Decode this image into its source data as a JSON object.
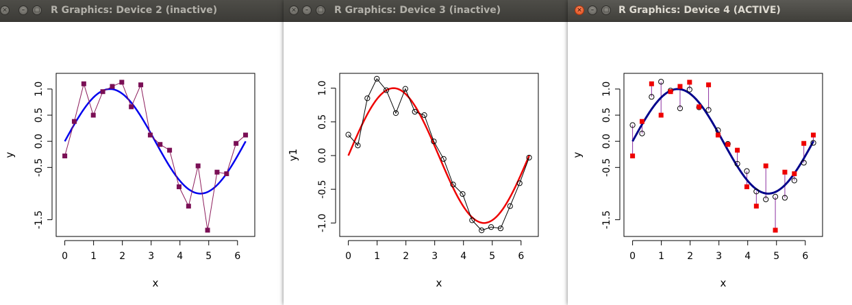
{
  "windows": [
    {
      "title": "R Graphics: Device 2 (inactive)",
      "plot": {
        "type": "scatter",
        "xlabel": "x",
        "ylabel": "y",
        "xlim": [
          -0.3,
          6.6
        ],
        "ylim": [
          -1.82,
          1.3
        ],
        "xticks": [
          0,
          1,
          2,
          3,
          4,
          5,
          6
        ],
        "xticklabels": [
          "0",
          "1",
          "2",
          "3",
          "4",
          "5",
          "6"
        ],
        "yticks": [
          -1.5,
          -0.5,
          0.0,
          0.5,
          1.0
        ],
        "yticklabels": [
          "-1.5",
          "-0.5",
          "0.0",
          "0.5",
          "1.0"
        ],
        "series": [
          {
            "kind": "curve",
            "color": "#0000ee",
            "width": 2.5
          },
          {
            "kind": "line",
            "color": "#8b1a5a",
            "width": 1,
            "x": [
              0,
              0.33,
              0.66,
              0.99,
              1.32,
              1.65,
              1.98,
              2.31,
              2.64,
              2.97,
              3.31,
              3.64,
              3.97,
              4.3,
              4.63,
              4.96,
              5.29,
              5.62,
              5.95,
              6.28
            ],
            "y": [
              -0.28,
              0.38,
              1.1,
              0.5,
              0.95,
              1.05,
              1.13,
              0.66,
              1.08,
              0.12,
              -0.06,
              -0.17,
              -0.87,
              -1.24,
              -0.47,
              -1.7,
              -0.59,
              -0.62,
              -0.04,
              0.12
            ]
          },
          {
            "kind": "squares",
            "color": "#7a0f55",
            "x": [
              0,
              0.33,
              0.66,
              0.99,
              1.32,
              1.65,
              1.98,
              2.31,
              2.64,
              2.97,
              3.31,
              3.64,
              3.97,
              4.3,
              4.63,
              4.96,
              5.29,
              5.62,
              5.95,
              6.28
            ],
            "y": [
              -0.28,
              0.38,
              1.1,
              0.5,
              0.95,
              1.05,
              1.13,
              0.66,
              1.08,
              0.12,
              -0.06,
              -0.17,
              -0.87,
              -1.24,
              -0.47,
              -1.7,
              -0.59,
              -0.62,
              -0.04,
              0.12
            ]
          }
        ]
      }
    },
    {
      "title": "R Graphics: Device 3 (inactive)",
      "plot": {
        "type": "scatter",
        "xlabel": "x",
        "ylabel": "y1",
        "xlim": [
          -0.3,
          6.6
        ],
        "ylim": [
          -1.2,
          1.22
        ],
        "xticks": [
          0,
          1,
          2,
          3,
          4,
          5,
          6
        ],
        "xticklabels": [
          "0",
          "1",
          "2",
          "3",
          "4",
          "5",
          "6"
        ],
        "yticks": [
          -1.0,
          -0.5,
          0.0,
          0.5,
          1.0
        ],
        "yticklabels": [
          "-1.0",
          "-0.5",
          "0.0",
          "0.5",
          "1.0"
        ],
        "series": [
          {
            "kind": "curve",
            "color": "#ee0000",
            "width": 2.5
          },
          {
            "kind": "line",
            "color": "#000000",
            "width": 1,
            "x": [
              0,
              0.33,
              0.66,
              0.99,
              1.32,
              1.65,
              1.98,
              2.31,
              2.64,
              2.97,
              3.31,
              3.64,
              3.97,
              4.3,
              4.63,
              4.96,
              5.29,
              5.62,
              5.95,
              6.28
            ],
            "y": [
              0.31,
              0.15,
              0.85,
              1.14,
              0.97,
              0.63,
              0.99,
              0.65,
              0.6,
              0.21,
              -0.05,
              -0.43,
              -0.57,
              -0.96,
              -1.11,
              -1.06,
              -1.08,
              -0.75,
              -0.41,
              -0.03
            ]
          },
          {
            "kind": "circles",
            "color": "#000000",
            "x": [
              0,
              0.33,
              0.66,
              0.99,
              1.32,
              1.65,
              1.98,
              2.31,
              2.64,
              2.97,
              3.31,
              3.64,
              3.97,
              4.3,
              4.63,
              4.96,
              5.29,
              5.62,
              5.95,
              6.28
            ],
            "y": [
              0.31,
              0.15,
              0.85,
              1.14,
              0.97,
              0.63,
              0.99,
              0.65,
              0.6,
              0.21,
              -0.05,
              -0.43,
              -0.57,
              -0.96,
              -1.11,
              -1.06,
              -1.08,
              -0.75,
              -0.41,
              -0.03
            ]
          }
        ]
      }
    },
    {
      "title": "R Graphics: Device 4 (ACTIVE)",
      "plot": {
        "type": "scatter",
        "xlabel": "x",
        "ylabel": "y",
        "xlim": [
          -0.3,
          6.6
        ],
        "ylim": [
          -1.82,
          1.3
        ],
        "xticks": [
          0,
          1,
          2,
          3,
          4,
          5,
          6
        ],
        "xticklabels": [
          "0",
          "1",
          "2",
          "3",
          "4",
          "5",
          "6"
        ],
        "yticks": [
          -1.5,
          -0.5,
          0.0,
          0.5,
          1.0
        ],
        "yticklabels": [
          "-1.5",
          "-0.5",
          "0.0",
          "0.5",
          "1.0"
        ],
        "series": [
          {
            "kind": "segments",
            "color": "#8b2fa0",
            "width": 1,
            "x": [
              0,
              0.33,
              0.66,
              0.99,
              1.32,
              1.65,
              1.98,
              2.31,
              2.64,
              2.97,
              3.31,
              3.64,
              3.97,
              4.3,
              4.63,
              4.96,
              5.29,
              5.62,
              5.95,
              6.28
            ],
            "y0": [
              0.31,
              0.15,
              0.85,
              1.14,
              0.97,
              0.63,
              0.99,
              0.65,
              0.6,
              0.21,
              -0.05,
              -0.43,
              -0.57,
              -0.96,
              -1.11,
              -1.06,
              -1.08,
              -0.75,
              -0.41,
              -0.03
            ],
            "y1": [
              -0.28,
              0.38,
              1.1,
              0.5,
              0.95,
              1.05,
              1.13,
              0.66,
              1.08,
              0.12,
              -0.06,
              -0.17,
              -0.87,
              -1.24,
              -0.47,
              -1.7,
              -0.59,
              -0.62,
              -0.04,
              0.12
            ]
          },
          {
            "kind": "curve",
            "color": "#00008b",
            "width": 3
          },
          {
            "kind": "circles",
            "color": "#000000",
            "x": [
              0,
              0.33,
              0.66,
              0.99,
              1.32,
              1.65,
              1.98,
              2.31,
              2.64,
              2.97,
              3.31,
              3.64,
              3.97,
              4.3,
              4.63,
              4.96,
              5.29,
              5.62,
              5.95,
              6.28
            ],
            "y": [
              0.31,
              0.15,
              0.85,
              1.14,
              0.97,
              0.63,
              0.99,
              0.65,
              0.6,
              0.21,
              -0.05,
              -0.43,
              -0.57,
              -0.96,
              -1.11,
              -1.06,
              -1.08,
              -0.75,
              -0.41,
              -0.03
            ]
          },
          {
            "kind": "squares",
            "color": "#ee0000",
            "x": [
              0,
              0.33,
              0.66,
              0.99,
              1.32,
              1.65,
              1.98,
              2.31,
              2.64,
              2.97,
              3.31,
              3.64,
              3.97,
              4.3,
              4.63,
              4.96,
              5.29,
              5.62,
              5.95,
              6.28
            ],
            "y": [
              -0.28,
              0.38,
              1.1,
              0.5,
              0.95,
              1.05,
              1.13,
              0.66,
              1.08,
              0.12,
              -0.06,
              -0.17,
              -0.87,
              -1.24,
              -0.47,
              -1.7,
              -0.59,
              -0.62,
              -0.04,
              0.12
            ]
          }
        ]
      }
    }
  ]
}
